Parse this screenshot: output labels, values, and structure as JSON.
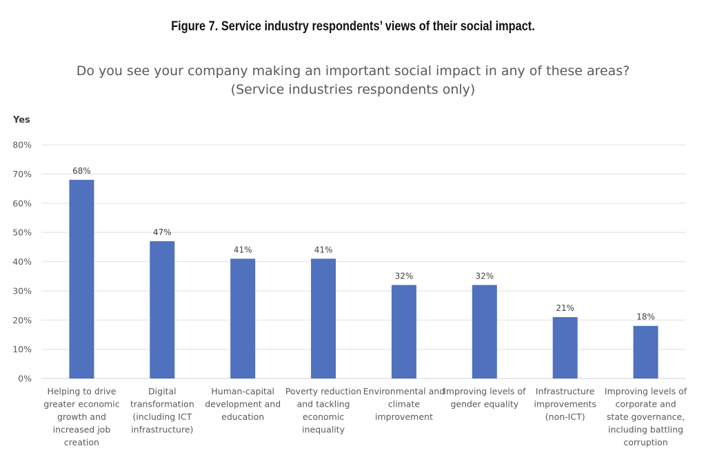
{
  "figure": {
    "caption": "Figure 7. Service industry respondents’ views of their social impact."
  },
  "chart_data": {
    "type": "bar",
    "title": "Do you see your company making an important social impact in any of these areas?",
    "subtitle": "(Service industries respondents only)",
    "ylabel": "Yes",
    "xlabel": "",
    "ylim": [
      0,
      80
    ],
    "yticks": [
      0,
      10,
      20,
      30,
      40,
      50,
      60,
      70,
      80
    ],
    "ytick_labels": [
      "0%",
      "10%",
      "20%",
      "30%",
      "40%",
      "50%",
      "60%",
      "70%",
      "80%"
    ],
    "grid": true,
    "legend": "none",
    "bar_color": "#4f71be",
    "categories": [
      [
        "Helping to drive",
        "greater economic",
        "growth and",
        "increased job",
        "creation"
      ],
      [
        "Digital",
        "transformation",
        "(including ICT",
        "infrastructure)"
      ],
      [
        "Human-capital",
        "development and",
        "education"
      ],
      [
        "Poverty reduction",
        "and tackling",
        "economic",
        "inequality"
      ],
      [
        "Environmental and",
        "climate",
        "improvement"
      ],
      [
        "Improving levels of",
        "gender equality"
      ],
      [
        "Infrastructure",
        "improvements",
        "(non-ICT)"
      ],
      [
        "Improving levels of",
        "corporate and",
        "state governance,",
        "including battling",
        "corruption"
      ]
    ],
    "values": [
      68,
      47,
      41,
      41,
      32,
      32,
      21,
      18
    ],
    "data_labels": [
      "68%",
      "47%",
      "41%",
      "41%",
      "32%",
      "32%",
      "21%",
      "18%"
    ]
  }
}
